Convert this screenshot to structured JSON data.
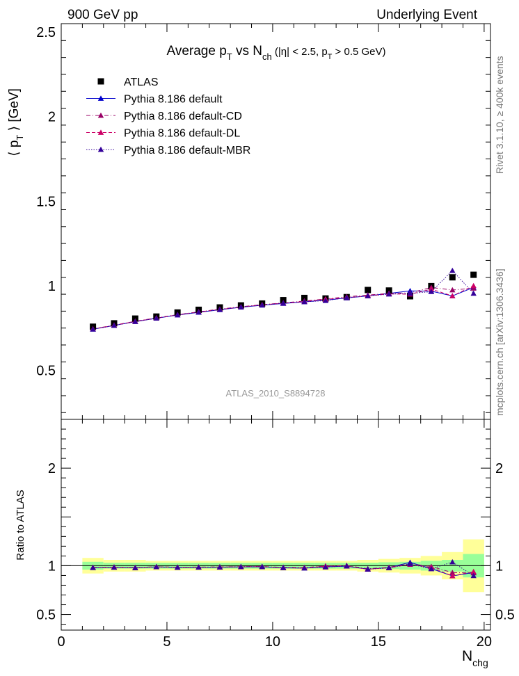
{
  "header": {
    "left": "900 GeV pp",
    "right": "Underlying Event"
  },
  "side_labels": {
    "right_top": "Rivet 3.1.10, ≥ 400k events",
    "right_bottom": "mcplots.cern.ch [arXiv:1306.3436]"
  },
  "watermark": "ATLAS_2010_S8894728",
  "chart_data": [
    {
      "panel": "main",
      "type": "scatter",
      "title": {
        "text": "Average p",
        "sub": "T",
        "mid": " vs N",
        "sub2": "ch",
        "rest": " (|η| < 2.5, p",
        "sub3": "T",
        "rest2": " > 0.5 GeV)"
      },
      "ylabel": {
        "pre": "⟨ p",
        "sub": "T",
        "post": " ⟩ [GeV]"
      },
      "xlim": [
        0,
        20.3
      ],
      "ylim": [
        0.21,
        2.55
      ],
      "yticks": [
        0.5,
        1,
        1.5,
        2,
        2.5
      ],
      "yticklabels": [
        "0.5",
        "1",
        "1.5",
        "2",
        "2.5"
      ],
      "x": [
        1.5,
        2.5,
        3.5,
        4.5,
        5.5,
        6.5,
        7.5,
        8.5,
        9.5,
        10.5,
        11.5,
        12.5,
        13.5,
        14.5,
        15.5,
        16.5,
        17.5,
        18.5,
        19.5
      ],
      "series": [
        {
          "name": "ATLAS",
          "color": "#000000",
          "marker": "square",
          "line": "none",
          "values": [
            0.758,
            0.778,
            0.806,
            0.818,
            0.842,
            0.858,
            0.872,
            0.884,
            0.895,
            0.915,
            0.928,
            0.925,
            0.933,
            0.975,
            0.972,
            0.938,
            0.998,
            1.05,
            1.065
          ]
        },
        {
          "name": "Pythia 8.186 default",
          "color": "#0000cc",
          "marker": "triangle",
          "line": "solid",
          "values": [
            0.743,
            0.765,
            0.788,
            0.808,
            0.827,
            0.843,
            0.858,
            0.873,
            0.885,
            0.895,
            0.905,
            0.915,
            0.928,
            0.94,
            0.955,
            0.97,
            0.968,
            0.94,
            0.99
          ]
        },
        {
          "name": "Pythia 8.186 default-CD",
          "color": "#990066",
          "marker": "triangle",
          "line": "dashdot",
          "values": [
            0.745,
            0.767,
            0.79,
            0.81,
            0.829,
            0.846,
            0.862,
            0.876,
            0.888,
            0.899,
            0.91,
            0.922,
            0.935,
            0.945,
            0.955,
            0.958,
            0.99,
            0.975,
            0.985
          ]
        },
        {
          "name": "Pythia 8.186 default-DL",
          "color": "#cc0066",
          "marker": "triangle",
          "line": "dashed",
          "values": [
            0.744,
            0.766,
            0.789,
            0.809,
            0.828,
            0.845,
            0.86,
            0.874,
            0.887,
            0.897,
            0.907,
            0.92,
            0.93,
            0.94,
            0.952,
            0.95,
            0.98,
            0.94,
            1.0
          ]
        },
        {
          "name": "Pythia 8.186 default-MBR",
          "color": "#330099",
          "marker": "triangle",
          "line": "dotted",
          "values": [
            0.743,
            0.765,
            0.788,
            0.808,
            0.828,
            0.844,
            0.859,
            0.874,
            0.886,
            0.897,
            0.905,
            0.912,
            0.93,
            0.94,
            0.95,
            0.955,
            0.965,
            1.09,
            0.955
          ]
        }
      ]
    },
    {
      "panel": "ratio",
      "type": "scatter",
      "ylabel": "Ratio to ATLAS",
      "xlabel": {
        "text": "N",
        "sub": "chg"
      },
      "xlim": [
        0,
        20.3
      ],
      "ylim": [
        0.34,
        2.5
      ],
      "xticks": [
        0,
        5,
        10,
        15,
        20
      ],
      "xticklabels": [
        "0",
        "5",
        "10",
        "15",
        "20"
      ],
      "yticks": [
        0.5,
        1,
        2
      ],
      "yticklabels": [
        "0.5",
        "1",
        "2"
      ],
      "bands": {
        "x_edges": [
          1,
          2,
          3,
          4,
          5,
          6,
          7,
          8,
          9,
          10,
          11,
          12,
          13,
          14,
          15,
          16,
          17,
          18,
          19,
          20
        ],
        "stat_halfwidth": [
          0.04,
          0.03,
          0.03,
          0.03,
          0.03,
          0.03,
          0.03,
          0.03,
          0.03,
          0.03,
          0.03,
          0.03,
          0.03,
          0.03,
          0.035,
          0.04,
          0.05,
          0.06,
          0.12
        ],
        "total_halfwidth": [
          0.08,
          0.06,
          0.06,
          0.05,
          0.05,
          0.05,
          0.05,
          0.05,
          0.05,
          0.05,
          0.05,
          0.05,
          0.05,
          0.06,
          0.07,
          0.08,
          0.1,
          0.14,
          0.27
        ],
        "stat_color": "#99ff99",
        "total_color": "#ffff99"
      },
      "x": [
        1.5,
        2.5,
        3.5,
        4.5,
        5.5,
        6.5,
        7.5,
        8.5,
        9.5,
        10.5,
        11.5,
        12.5,
        13.5,
        14.5,
        15.5,
        16.5,
        17.5,
        18.5,
        19.5
      ],
      "series": [
        {
          "name": "Pythia 8.186 default",
          "color": "#0000cc",
          "marker": "triangle",
          "line": "solid",
          "values": [
            0.98,
            0.983,
            0.978,
            0.988,
            0.982,
            0.983,
            0.984,
            0.988,
            0.989,
            0.978,
            0.975,
            0.989,
            0.995,
            0.964,
            0.982,
            1.034,
            0.97,
            0.895,
            0.93
          ]
        },
        {
          "name": "Pythia 8.186 default-CD",
          "color": "#990066",
          "marker": "triangle",
          "line": "dashdot",
          "values": [
            0.983,
            0.986,
            0.98,
            0.99,
            0.985,
            0.986,
            0.988,
            0.991,
            0.992,
            0.983,
            0.981,
            0.997,
            1.002,
            0.969,
            0.983,
            1.021,
            0.992,
            0.929,
            0.925
          ]
        },
        {
          "name": "Pythia 8.186 default-DL",
          "color": "#cc0066",
          "marker": "triangle",
          "line": "dashed",
          "values": [
            0.981,
            0.985,
            0.979,
            0.989,
            0.983,
            0.985,
            0.986,
            0.989,
            0.991,
            0.98,
            0.977,
            0.995,
            0.997,
            0.964,
            0.979,
            1.013,
            0.982,
            0.895,
            0.939
          ]
        },
        {
          "name": "Pythia 8.186 default-MBR",
          "color": "#330099",
          "marker": "triangle",
          "line": "dotted",
          "values": [
            0.98,
            0.983,
            0.978,
            0.988,
            0.983,
            0.984,
            0.985,
            0.989,
            0.99,
            0.98,
            0.975,
            0.986,
            0.997,
            0.964,
            0.977,
            1.018,
            0.967,
            1.038,
            0.897
          ]
        }
      ]
    }
  ]
}
